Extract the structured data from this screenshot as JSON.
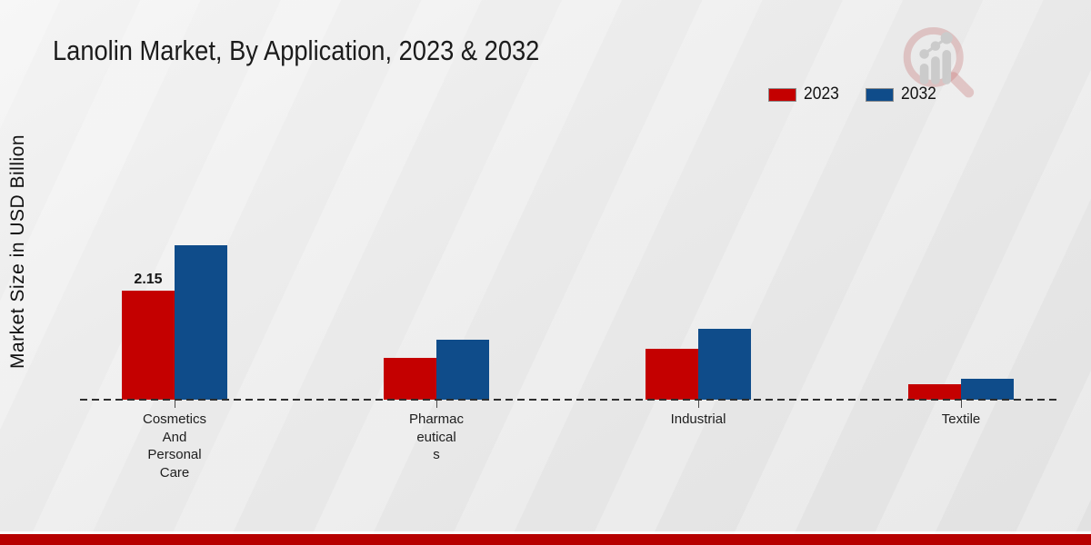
{
  "header": {
    "title": "Lanolin Market, By Application, 2023 & 2032"
  },
  "y_axis": {
    "label": "Market Size in USD Billion"
  },
  "legend": {
    "position": "top-right",
    "items": [
      {
        "label": "2023",
        "color": "#c40000"
      },
      {
        "label": "2032",
        "color": "#0f4c8a"
      }
    ]
  },
  "chart_data": {
    "type": "bar",
    "title": "Lanolin Market, By Application, 2023 & 2032",
    "xlabel": "",
    "ylabel": "Market Size in USD Billion",
    "categories": [
      "Cosmetics And Personal Care",
      "Pharmaceuticals",
      "Industrial",
      "Textile"
    ],
    "categories_display_lines": [
      [
        "Cosmetics",
        "And",
        "Personal",
        "Care"
      ],
      [
        "Pharmac",
        "eutical",
        "s"
      ],
      [
        "Industrial"
      ],
      [
        "Textile"
      ]
    ],
    "series": [
      {
        "name": "2023",
        "color": "#c40000",
        "values": [
          2.15,
          0.82,
          1.0,
          0.3
        ]
      },
      {
        "name": "2032",
        "color": "#0f4c8a",
        "values": [
          3.05,
          1.18,
          1.4,
          0.42
        ]
      }
    ],
    "bar_labels": [
      {
        "series_index": 0,
        "category_index": 0,
        "text": "2.15"
      }
    ],
    "baseline_style": "dashed",
    "y_ticks_visible": false,
    "grid": false,
    "legend_position": "top-right"
  },
  "branding": {
    "logo": "bar-chart-magnifier-logo"
  },
  "footer": {
    "bar_color": "#b60000"
  }
}
